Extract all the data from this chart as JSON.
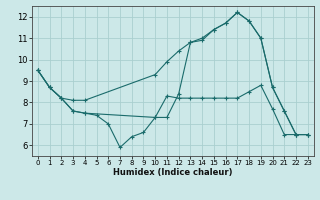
{
  "xlabel": "Humidex (Indice chaleur)",
  "bg_color": "#cce8e8",
  "grid_color": "#aacfcf",
  "line_color": "#1a6b6b",
  "xlim": [
    -0.5,
    23.5
  ],
  "ylim": [
    5.5,
    12.5
  ],
  "xticks": [
    0,
    1,
    2,
    3,
    4,
    5,
    6,
    7,
    8,
    9,
    10,
    11,
    12,
    13,
    14,
    15,
    16,
    17,
    18,
    19,
    20,
    21,
    22,
    23
  ],
  "yticks": [
    6,
    7,
    8,
    9,
    10,
    11,
    12
  ],
  "line1_x": [
    0,
    1,
    2,
    3,
    4,
    10,
    11,
    12,
    13,
    14,
    15,
    16,
    17,
    18,
    19,
    20,
    21,
    22,
    23
  ],
  "line1_y": [
    9.5,
    8.7,
    8.2,
    8.1,
    8.1,
    9.3,
    9.9,
    10.4,
    10.8,
    10.9,
    11.4,
    11.7,
    12.2,
    11.8,
    11.0,
    8.7,
    7.6,
    6.5,
    6.5
  ],
  "line2_x": [
    0,
    1,
    2,
    3,
    4,
    10,
    11,
    12,
    13,
    14,
    15,
    16,
    17,
    18,
    19,
    20,
    21,
    22,
    23
  ],
  "line2_y": [
    9.5,
    8.7,
    8.2,
    7.6,
    7.5,
    7.3,
    7.3,
    8.4,
    10.8,
    11.0,
    11.4,
    11.7,
    12.2,
    11.8,
    11.0,
    8.7,
    7.6,
    6.5,
    6.5
  ],
  "line3_x": [
    0,
    1,
    2,
    3,
    4,
    5,
    6,
    7,
    8,
    9,
    10,
    11,
    12,
    13,
    14,
    15,
    16,
    17,
    18,
    19,
    20,
    21,
    22,
    23
  ],
  "line3_y": [
    9.5,
    8.7,
    8.2,
    7.6,
    7.5,
    7.4,
    7.0,
    5.9,
    6.4,
    6.6,
    7.3,
    8.3,
    8.2,
    8.2,
    8.2,
    8.2,
    8.2,
    8.2,
    8.5,
    8.8,
    7.7,
    6.5,
    6.5,
    6.5
  ],
  "marker": "+"
}
